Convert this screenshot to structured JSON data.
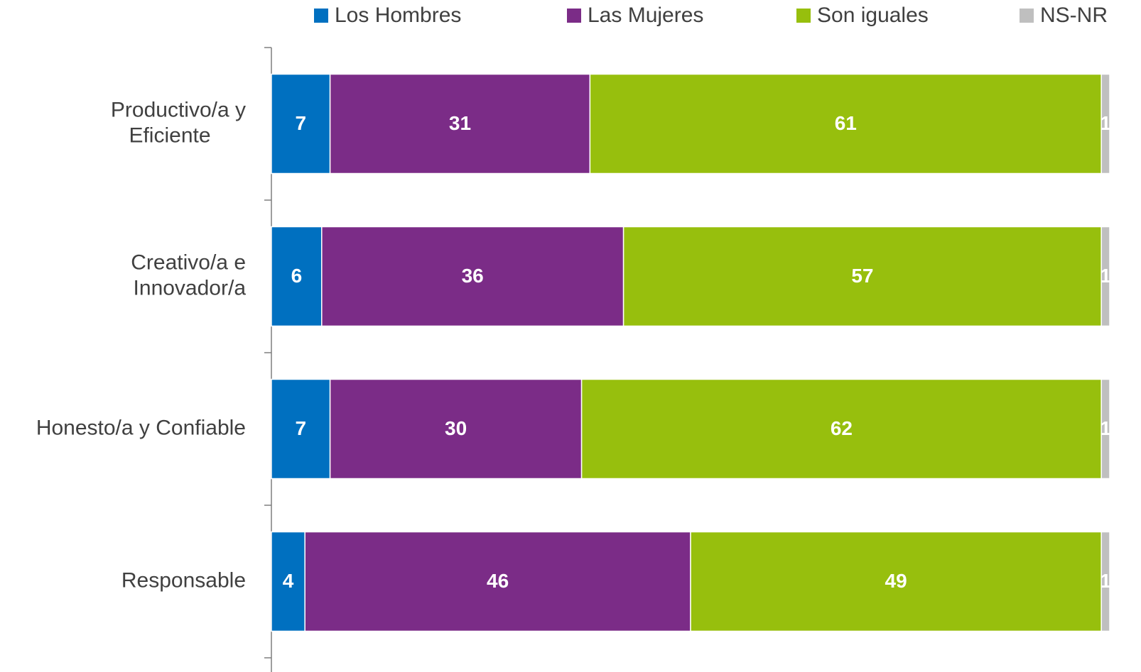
{
  "chart_data": {
    "type": "stacked-bar-horizontal",
    "categories": [
      "Productivo/a y\nEficiente",
      "Creativo/a e\nInnovador/a",
      "Honesto/a y Confiable",
      "Responsable"
    ],
    "series": [
      {
        "name": "Los Hombres",
        "color": "#0070c0",
        "values": [
          7,
          6,
          7,
          4
        ]
      },
      {
        "name": "Las Mujeres",
        "color": "#7b2c87",
        "values": [
          31,
          36,
          30,
          46
        ]
      },
      {
        "name": "Son iguales",
        "color": "#97bf0d",
        "values": [
          61,
          57,
          62,
          49
        ]
      },
      {
        "name": "NS-NR",
        "color": "#bfbfbf",
        "values": [
          1,
          1,
          1,
          1
        ]
      }
    ],
    "xlim": [
      0,
      100
    ],
    "legend": "top"
  }
}
